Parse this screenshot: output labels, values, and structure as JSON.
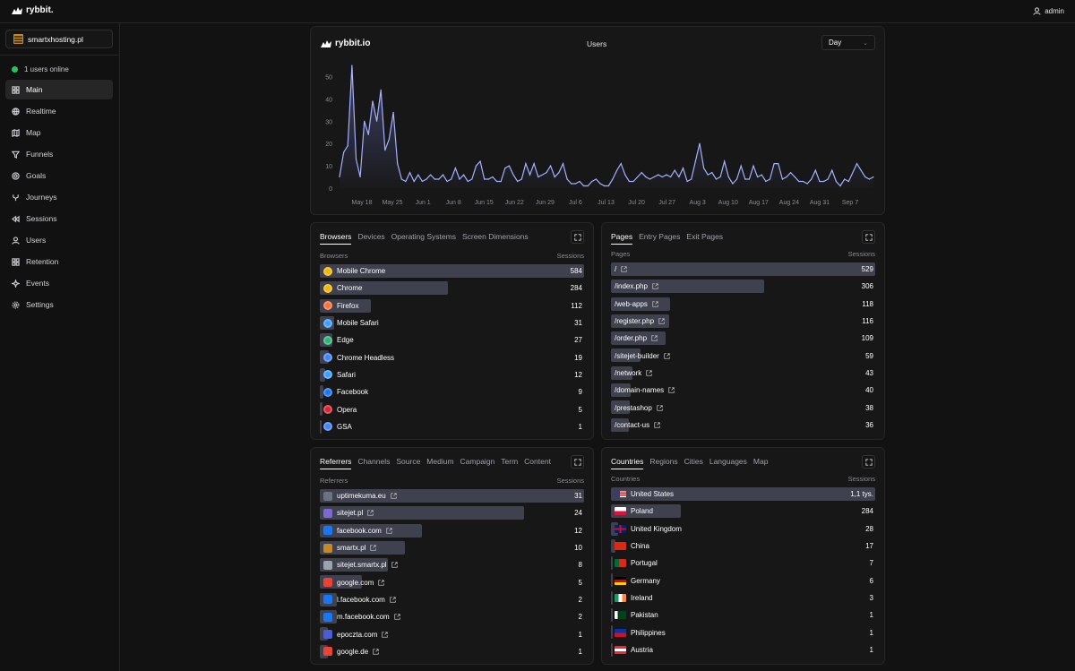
{
  "app": {
    "name": "rybbit.",
    "user": "admin"
  },
  "sidebar": {
    "site": "smartxhosting.pl",
    "online": "1 users online",
    "items": [
      {
        "label": "Main",
        "icon": "grid-icon",
        "active": true
      },
      {
        "label": "Realtime",
        "icon": "globe-icon"
      },
      {
        "label": "Map",
        "icon": "map-icon"
      },
      {
        "label": "Funnels",
        "icon": "funnel-icon"
      },
      {
        "label": "Goals",
        "icon": "target-icon"
      },
      {
        "label": "Journeys",
        "icon": "route-icon"
      },
      {
        "label": "Sessions",
        "icon": "rewind-icon"
      },
      {
        "label": "Users",
        "icon": "user-icon"
      },
      {
        "label": "Retention",
        "icon": "grid-icon"
      },
      {
        "label": "Events",
        "icon": "sparkle-icon"
      },
      {
        "label": "Settings",
        "icon": "gear-icon"
      }
    ]
  },
  "main_chart": {
    "brand": "rybbit.io",
    "title": "Users",
    "granularity": "Day"
  },
  "chart_data": {
    "type": "area",
    "title": "Users",
    "ylim": [
      0,
      55
    ],
    "yticks": [
      0,
      10,
      20,
      30,
      40,
      50
    ],
    "xticks": [
      "May 18",
      "May 25",
      "Jun 1",
      "Jun 8",
      "Jun 15",
      "Jun 22",
      "Jun 29",
      "Jul 6",
      "Jul 13",
      "Jul 20",
      "Jul 27",
      "Aug 3",
      "Aug 10",
      "Aug 17",
      "Aug 24",
      "Aug 31",
      "Sep 7"
    ],
    "series": [
      {
        "values": [
          5,
          16,
          19,
          55,
          13,
          5,
          30,
          24,
          39,
          30,
          44,
          17,
          22,
          34,
          11,
          4,
          3,
          7,
          3,
          6,
          3,
          4,
          6,
          4,
          4,
          6,
          3,
          4,
          9,
          4,
          6,
          3,
          4,
          10,
          12,
          4,
          4,
          5,
          3,
          3,
          9,
          10,
          6,
          3,
          4,
          11,
          6,
          11,
          5,
          6,
          7,
          10,
          5,
          7,
          11,
          4,
          2,
          2,
          3,
          1,
          1,
          3,
          4,
          2,
          1,
          1,
          4,
          8,
          11,
          6,
          3,
          3,
          5,
          7,
          5,
          4,
          5,
          6,
          5,
          6,
          5,
          8,
          5,
          9,
          3,
          4,
          12,
          20,
          9,
          6,
          7,
          4,
          5,
          12,
          5,
          2,
          4,
          10,
          4,
          4,
          10,
          5,
          6,
          3,
          4,
          11,
          11,
          4,
          5,
          7,
          5,
          3,
          3,
          2,
          4,
          8,
          3,
          3,
          4,
          8,
          3,
          1,
          4,
          3,
          7,
          11,
          8,
          5,
          4,
          5
        ]
      }
    ],
    "grid": false,
    "legend": "none"
  },
  "browsers": {
    "tabs": [
      "Browsers",
      "Devices",
      "Operating Systems",
      "Screen Dimensions"
    ],
    "col_left": "Browsers",
    "col_right": "Sessions",
    "rows": [
      {
        "name": "Mobile Chrome",
        "value": "584",
        "pct": 100,
        "color": "#f2b705"
      },
      {
        "name": "Chrome",
        "value": "284",
        "pct": 48.6,
        "color": "#f2b705"
      },
      {
        "name": "Firefox",
        "value": "112",
        "pct": 19.2,
        "color": "#ff7139"
      },
      {
        "name": "Mobile Safari",
        "value": "31",
        "pct": 5.3,
        "color": "#3aa0ff"
      },
      {
        "name": "Edge",
        "value": "27",
        "pct": 4.6,
        "color": "#2bb673"
      },
      {
        "name": "Chrome Headless",
        "value": "19",
        "pct": 3.3,
        "color": "#4285f4"
      },
      {
        "name": "Safari",
        "value": "12",
        "pct": 2.1,
        "color": "#3aa0ff"
      },
      {
        "name": "Facebook",
        "value": "9",
        "pct": 1.5,
        "color": "#1877f2"
      },
      {
        "name": "Opera",
        "value": "5",
        "pct": 0.9,
        "color": "#e0242f"
      },
      {
        "name": "GSA",
        "value": "1",
        "pct": 0.2,
        "color": "#4285f4"
      }
    ]
  },
  "pages": {
    "tabs": [
      "Pages",
      "Entry Pages",
      "Exit Pages"
    ],
    "col_left": "Pages",
    "col_right": "Sessions",
    "rows": [
      {
        "name": "/",
        "value": "529",
        "pct": 100
      },
      {
        "name": "/index.php",
        "value": "306",
        "pct": 57.8
      },
      {
        "name": "/web-apps",
        "value": "118",
        "pct": 22.3
      },
      {
        "name": "/register.php",
        "value": "116",
        "pct": 21.9
      },
      {
        "name": "/order.php",
        "value": "109",
        "pct": 20.6
      },
      {
        "name": "/sitejet-builder",
        "value": "59",
        "pct": 11.2
      },
      {
        "name": "/network",
        "value": "43",
        "pct": 8.1
      },
      {
        "name": "/domain-names",
        "value": "40",
        "pct": 7.6
      },
      {
        "name": "/prestashop",
        "value": "38",
        "pct": 7.2
      },
      {
        "name": "/contact-us",
        "value": "36",
        "pct": 6.8
      }
    ]
  },
  "referrers": {
    "tabs": [
      "Referrers",
      "Channels",
      "Source",
      "Medium",
      "Campaign",
      "Term",
      "Content"
    ],
    "col_left": "Referrers",
    "col_right": "Sessions",
    "rows": [
      {
        "name": "uptimekuma.eu",
        "value": "31",
        "pct": 100,
        "color": "#6b7280"
      },
      {
        "name": "sitejet.pl",
        "value": "24",
        "pct": 77.4,
        "color": "#7c6ad1"
      },
      {
        "name": "facebook.com",
        "value": "12",
        "pct": 38.7,
        "color": "#1877f2"
      },
      {
        "name": "smartx.pl",
        "value": "10",
        "pct": 32.3,
        "color": "#c08a2c"
      },
      {
        "name": "sitejet.smartx.pl",
        "value": "8",
        "pct": 25.8,
        "color": "#9ca3af"
      },
      {
        "name": "google.com",
        "value": "5",
        "pct": 16.1,
        "color": "#ea4335"
      },
      {
        "name": "l.facebook.com",
        "value": "2",
        "pct": 6.5,
        "color": "#1877f2"
      },
      {
        "name": "m.facebook.com",
        "value": "2",
        "pct": 6.5,
        "color": "#1877f2"
      },
      {
        "name": "epoczta.com",
        "value": "1",
        "pct": 3.2,
        "color": "#4b5dd3"
      },
      {
        "name": "google.de",
        "value": "1",
        "pct": 3.2,
        "color": "#ea4335"
      }
    ]
  },
  "countries": {
    "tabs": [
      "Countries",
      "Regions",
      "Cities",
      "Languages",
      "Map"
    ],
    "col_left": "Countries",
    "col_right": "Sessions",
    "rows": [
      {
        "name": "United States",
        "value": "1,1 tys.",
        "pct": 100,
        "flag": "us"
      },
      {
        "name": "Poland",
        "value": "284",
        "pct": 26.5,
        "flag": "pl"
      },
      {
        "name": "United Kingdom",
        "value": "28",
        "pct": 2.6,
        "flag": "gb"
      },
      {
        "name": "China",
        "value": "17",
        "pct": 1.6,
        "flag": "cn"
      },
      {
        "name": "Portugal",
        "value": "7",
        "pct": 0.7,
        "flag": "pt"
      },
      {
        "name": "Germany",
        "value": "6",
        "pct": 0.6,
        "flag": "de"
      },
      {
        "name": "Ireland",
        "value": "3",
        "pct": 0.3,
        "flag": "ie"
      },
      {
        "name": "Pakistan",
        "value": "1",
        "pct": 0.1,
        "flag": "pk"
      },
      {
        "name": "Philippines",
        "value": "1",
        "pct": 0.1,
        "flag": "ph"
      },
      {
        "name": "Austria",
        "value": "1",
        "pct": 0.1,
        "flag": "at"
      }
    ]
  }
}
